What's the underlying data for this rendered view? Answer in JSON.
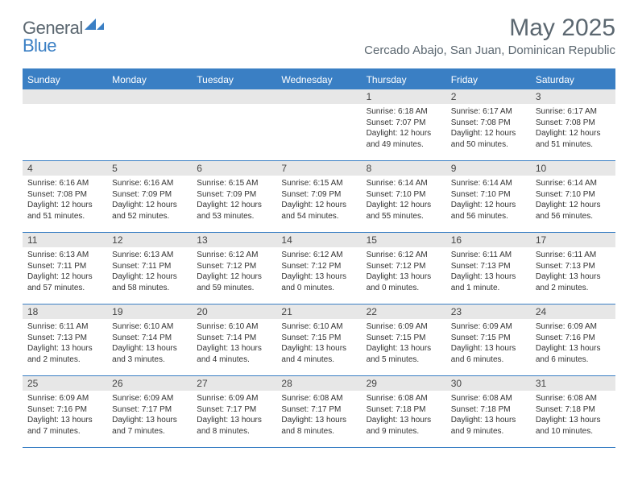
{
  "logo": {
    "general": "General",
    "blue": "Blue"
  },
  "title": "May 2025",
  "location": "Cercado Abajo, San Juan, Dominican Republic",
  "colors": {
    "accent": "#3a7fc4",
    "header_text": "#5b6770",
    "daybar_bg": "#e7e7e7",
    "body_text": "#333333",
    "background": "#ffffff"
  },
  "day_names": [
    "Sunday",
    "Monday",
    "Tuesday",
    "Wednesday",
    "Thursday",
    "Friday",
    "Saturday"
  ],
  "weeks": [
    [
      {
        "n": "",
        "sr": "",
        "ss": "",
        "dl": ""
      },
      {
        "n": "",
        "sr": "",
        "ss": "",
        "dl": ""
      },
      {
        "n": "",
        "sr": "",
        "ss": "",
        "dl": ""
      },
      {
        "n": "",
        "sr": "",
        "ss": "",
        "dl": ""
      },
      {
        "n": "1",
        "sr": "Sunrise: 6:18 AM",
        "ss": "Sunset: 7:07 PM",
        "dl": "Daylight: 12 hours and 49 minutes."
      },
      {
        "n": "2",
        "sr": "Sunrise: 6:17 AM",
        "ss": "Sunset: 7:08 PM",
        "dl": "Daylight: 12 hours and 50 minutes."
      },
      {
        "n": "3",
        "sr": "Sunrise: 6:17 AM",
        "ss": "Sunset: 7:08 PM",
        "dl": "Daylight: 12 hours and 51 minutes."
      }
    ],
    [
      {
        "n": "4",
        "sr": "Sunrise: 6:16 AM",
        "ss": "Sunset: 7:08 PM",
        "dl": "Daylight: 12 hours and 51 minutes."
      },
      {
        "n": "5",
        "sr": "Sunrise: 6:16 AM",
        "ss": "Sunset: 7:09 PM",
        "dl": "Daylight: 12 hours and 52 minutes."
      },
      {
        "n": "6",
        "sr": "Sunrise: 6:15 AM",
        "ss": "Sunset: 7:09 PM",
        "dl": "Daylight: 12 hours and 53 minutes."
      },
      {
        "n": "7",
        "sr": "Sunrise: 6:15 AM",
        "ss": "Sunset: 7:09 PM",
        "dl": "Daylight: 12 hours and 54 minutes."
      },
      {
        "n": "8",
        "sr": "Sunrise: 6:14 AM",
        "ss": "Sunset: 7:10 PM",
        "dl": "Daylight: 12 hours and 55 minutes."
      },
      {
        "n": "9",
        "sr": "Sunrise: 6:14 AM",
        "ss": "Sunset: 7:10 PM",
        "dl": "Daylight: 12 hours and 56 minutes."
      },
      {
        "n": "10",
        "sr": "Sunrise: 6:14 AM",
        "ss": "Sunset: 7:10 PM",
        "dl": "Daylight: 12 hours and 56 minutes."
      }
    ],
    [
      {
        "n": "11",
        "sr": "Sunrise: 6:13 AM",
        "ss": "Sunset: 7:11 PM",
        "dl": "Daylight: 12 hours and 57 minutes."
      },
      {
        "n": "12",
        "sr": "Sunrise: 6:13 AM",
        "ss": "Sunset: 7:11 PM",
        "dl": "Daylight: 12 hours and 58 minutes."
      },
      {
        "n": "13",
        "sr": "Sunrise: 6:12 AM",
        "ss": "Sunset: 7:12 PM",
        "dl": "Daylight: 12 hours and 59 minutes."
      },
      {
        "n": "14",
        "sr": "Sunrise: 6:12 AM",
        "ss": "Sunset: 7:12 PM",
        "dl": "Daylight: 13 hours and 0 minutes."
      },
      {
        "n": "15",
        "sr": "Sunrise: 6:12 AM",
        "ss": "Sunset: 7:12 PM",
        "dl": "Daylight: 13 hours and 0 minutes."
      },
      {
        "n": "16",
        "sr": "Sunrise: 6:11 AM",
        "ss": "Sunset: 7:13 PM",
        "dl": "Daylight: 13 hours and 1 minute."
      },
      {
        "n": "17",
        "sr": "Sunrise: 6:11 AM",
        "ss": "Sunset: 7:13 PM",
        "dl": "Daylight: 13 hours and 2 minutes."
      }
    ],
    [
      {
        "n": "18",
        "sr": "Sunrise: 6:11 AM",
        "ss": "Sunset: 7:13 PM",
        "dl": "Daylight: 13 hours and 2 minutes."
      },
      {
        "n": "19",
        "sr": "Sunrise: 6:10 AM",
        "ss": "Sunset: 7:14 PM",
        "dl": "Daylight: 13 hours and 3 minutes."
      },
      {
        "n": "20",
        "sr": "Sunrise: 6:10 AM",
        "ss": "Sunset: 7:14 PM",
        "dl": "Daylight: 13 hours and 4 minutes."
      },
      {
        "n": "21",
        "sr": "Sunrise: 6:10 AM",
        "ss": "Sunset: 7:15 PM",
        "dl": "Daylight: 13 hours and 4 minutes."
      },
      {
        "n": "22",
        "sr": "Sunrise: 6:09 AM",
        "ss": "Sunset: 7:15 PM",
        "dl": "Daylight: 13 hours and 5 minutes."
      },
      {
        "n": "23",
        "sr": "Sunrise: 6:09 AM",
        "ss": "Sunset: 7:15 PM",
        "dl": "Daylight: 13 hours and 6 minutes."
      },
      {
        "n": "24",
        "sr": "Sunrise: 6:09 AM",
        "ss": "Sunset: 7:16 PM",
        "dl": "Daylight: 13 hours and 6 minutes."
      }
    ],
    [
      {
        "n": "25",
        "sr": "Sunrise: 6:09 AM",
        "ss": "Sunset: 7:16 PM",
        "dl": "Daylight: 13 hours and 7 minutes."
      },
      {
        "n": "26",
        "sr": "Sunrise: 6:09 AM",
        "ss": "Sunset: 7:17 PM",
        "dl": "Daylight: 13 hours and 7 minutes."
      },
      {
        "n": "27",
        "sr": "Sunrise: 6:09 AM",
        "ss": "Sunset: 7:17 PM",
        "dl": "Daylight: 13 hours and 8 minutes."
      },
      {
        "n": "28",
        "sr": "Sunrise: 6:08 AM",
        "ss": "Sunset: 7:17 PM",
        "dl": "Daylight: 13 hours and 8 minutes."
      },
      {
        "n": "29",
        "sr": "Sunrise: 6:08 AM",
        "ss": "Sunset: 7:18 PM",
        "dl": "Daylight: 13 hours and 9 minutes."
      },
      {
        "n": "30",
        "sr": "Sunrise: 6:08 AM",
        "ss": "Sunset: 7:18 PM",
        "dl": "Daylight: 13 hours and 9 minutes."
      },
      {
        "n": "31",
        "sr": "Sunrise: 6:08 AM",
        "ss": "Sunset: 7:18 PM",
        "dl": "Daylight: 13 hours and 10 minutes."
      }
    ]
  ]
}
